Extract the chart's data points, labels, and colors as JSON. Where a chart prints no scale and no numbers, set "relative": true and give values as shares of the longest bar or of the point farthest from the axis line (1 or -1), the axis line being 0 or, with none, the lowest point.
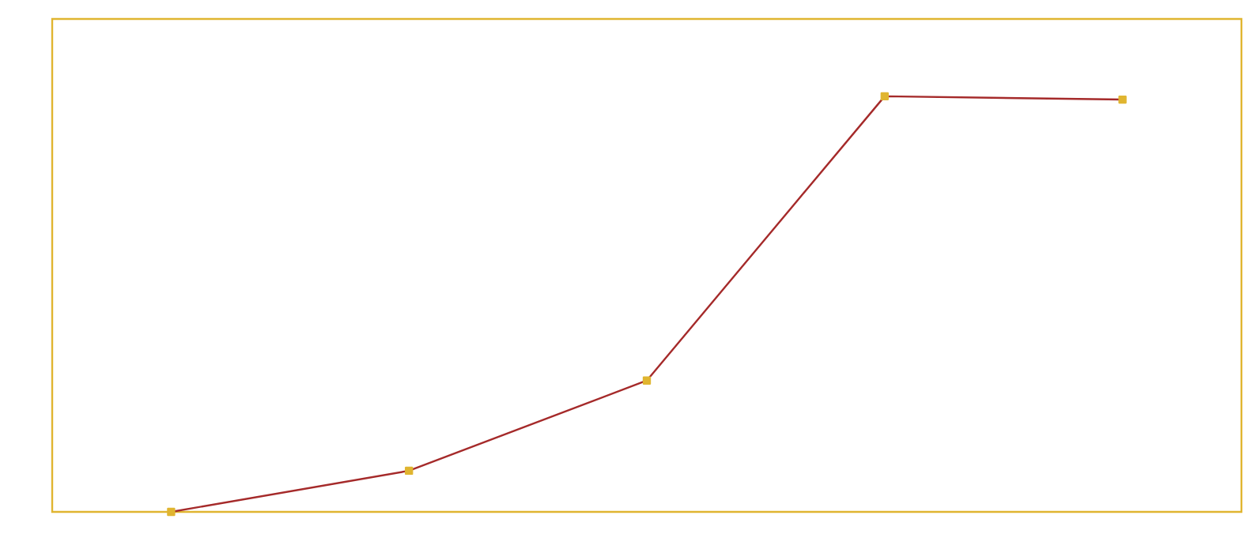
{
  "chart_data": {
    "type": "line",
    "relative": true,
    "categories": [
      null,
      null,
      null,
      null,
      null
    ],
    "series": [
      {
        "color": "#a52a2a",
        "values": [
          0,
          0.099,
          0.316,
          1,
          0.992
        ]
      }
    ],
    "marker": "square"
  }
}
